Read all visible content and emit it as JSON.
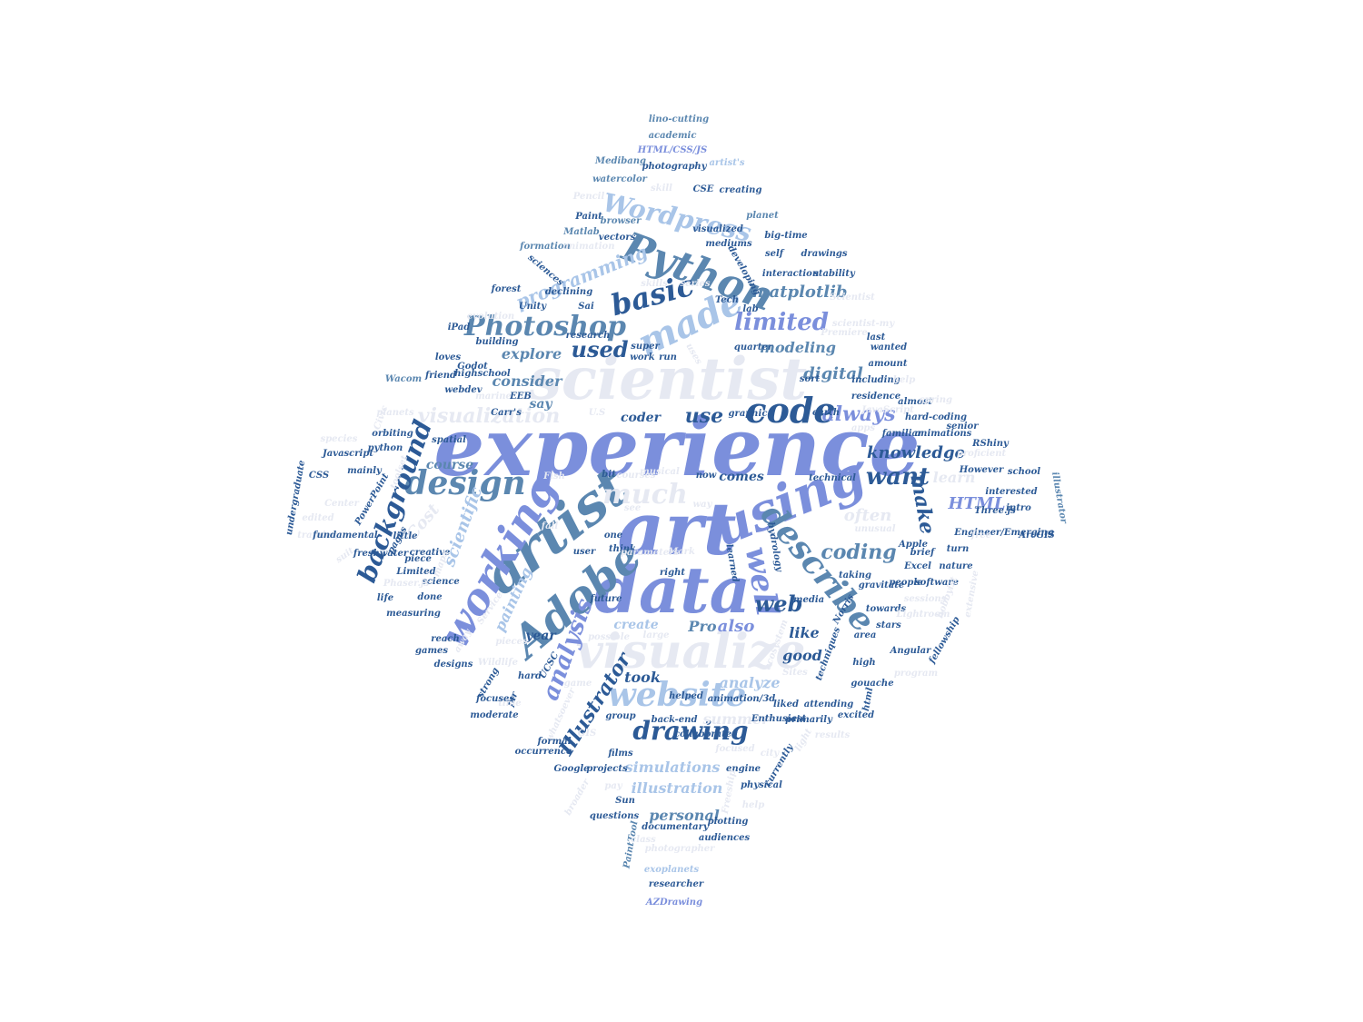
{
  "palette": {
    "navy": "#2c5a96",
    "steel": "#5b87b0",
    "periwinkle": "#7b8fdc",
    "sky": "#a9c5e8",
    "pale": "#e6e9f2"
  },
  "words": [
    {
      "text": "experience",
      "color": "periwinkle"
    },
    {
      "text": "scientist",
      "color": "pale"
    },
    {
      "text": "art",
      "color": "periwinkle"
    },
    {
      "text": "data",
      "color": "periwinkle"
    },
    {
      "text": "visualize",
      "color": "pale"
    },
    {
      "text": "artist",
      "color": "steel"
    },
    {
      "text": "using",
      "color": "periwinkle"
    },
    {
      "text": "working",
      "color": "periwinkle"
    },
    {
      "text": "Adobe",
      "color": "steel"
    },
    {
      "text": "made",
      "color": "sky"
    },
    {
      "text": "Python",
      "color": "steel"
    },
    {
      "text": "code",
      "color": "navy"
    },
    {
      "text": "website",
      "color": "sky"
    },
    {
      "text": "describe",
      "color": "steel"
    },
    {
      "text": "design",
      "color": "steel"
    },
    {
      "text": "much",
      "color": "pale"
    },
    {
      "text": "well",
      "color": "periwinkle"
    },
    {
      "text": "background",
      "color": "navy"
    },
    {
      "text": "Photoshop",
      "color": "steel"
    },
    {
      "text": "basic",
      "color": "navy"
    },
    {
      "text": "Wordpress",
      "color": "sky"
    },
    {
      "text": "drawing",
      "color": "navy"
    },
    {
      "text": "analysis",
      "color": "periwinkle"
    },
    {
      "text": "visualization",
      "color": "pale"
    },
    {
      "text": "limited",
      "color": "periwinkle"
    },
    {
      "text": "always",
      "color": "periwinkle"
    },
    {
      "text": "want",
      "color": "navy"
    },
    {
      "text": "make",
      "color": "navy"
    },
    {
      "text": "coding",
      "color": "steel"
    },
    {
      "text": "used",
      "color": "navy"
    },
    {
      "text": "web",
      "color": "navy"
    },
    {
      "text": "Illustrator",
      "color": "navy"
    },
    {
      "text": "programming",
      "color": "sky"
    },
    {
      "text": "matplotlib",
      "color": "steel"
    },
    {
      "text": "use",
      "color": "navy"
    },
    {
      "text": "scientific",
      "color": "sky"
    },
    {
      "text": "digital",
      "color": "steel"
    },
    {
      "text": "knowledge",
      "color": "navy"
    },
    {
      "text": "HTML",
      "color": "periwinkle"
    },
    {
      "text": "modeling",
      "color": "steel"
    },
    {
      "text": "explore",
      "color": "steel"
    },
    {
      "text": "consider",
      "color": "steel"
    },
    {
      "text": "course",
      "color": "steel"
    },
    {
      "text": "coder",
      "color": "navy"
    },
    {
      "text": "comes",
      "color": "navy"
    },
    {
      "text": "learn",
      "color": "pale"
    },
    {
      "text": "say",
      "color": "steel"
    },
    {
      "text": "Cost",
      "color": "pale"
    },
    {
      "text": "often",
      "color": "pale"
    },
    {
      "text": "painting",
      "color": "sky"
    },
    {
      "text": "also",
      "color": "periwinkle"
    },
    {
      "text": "like",
      "color": "navy"
    },
    {
      "text": "Pro",
      "color": "steel"
    },
    {
      "text": "good",
      "color": "navy"
    },
    {
      "text": "year",
      "color": "navy"
    },
    {
      "text": "took",
      "color": "navy"
    },
    {
      "text": "analyze",
      "color": "sky"
    },
    {
      "text": "create",
      "color": "sky"
    },
    {
      "text": "summer",
      "color": "pale"
    },
    {
      "text": "simulations",
      "color": "sky"
    },
    {
      "text": "illustration",
      "color": "sky"
    },
    {
      "text": "personal",
      "color": "steel"
    },
    {
      "text": "lino-cutting",
      "color": "steel"
    },
    {
      "text": "academic",
      "color": "steel"
    },
    {
      "text": "HTML/CSS/JS",
      "color": "periwinkle"
    },
    {
      "text": "Medibang",
      "color": "steel"
    },
    {
      "text": "photography",
      "color": "navy"
    },
    {
      "text": "artist's",
      "color": "sky"
    },
    {
      "text": "watercolor",
      "color": "steel"
    },
    {
      "text": "skill",
      "color": "pale"
    },
    {
      "text": "CSE",
      "color": "navy"
    },
    {
      "text": "creating",
      "color": "navy"
    },
    {
      "text": "Pencil",
      "color": "pale"
    },
    {
      "text": "Paint",
      "color": "navy"
    },
    {
      "text": "browser",
      "color": "steel"
    },
    {
      "text": "planet",
      "color": "steel"
    },
    {
      "text": "Matlab",
      "color": "steel"
    },
    {
      "text": "vectors",
      "color": "navy"
    },
    {
      "text": "visualized",
      "color": "navy"
    },
    {
      "text": "big-time",
      "color": "navy"
    },
    {
      "text": "formation",
      "color": "steel"
    },
    {
      "text": "animation",
      "color": "pale"
    },
    {
      "text": "mediums",
      "color": "navy"
    },
    {
      "text": "self",
      "color": "navy"
    },
    {
      "text": "drawings",
      "color": "navy"
    },
    {
      "text": "interaction",
      "color": "navy"
    },
    {
      "text": "stability",
      "color": "navy"
    },
    {
      "text": "sciences",
      "color": "navy"
    },
    {
      "text": "developing",
      "color": "navy"
    },
    {
      "text": "forest",
      "color": "navy"
    },
    {
      "text": "declining",
      "color": "navy"
    },
    {
      "text": "skills",
      "color": "pale"
    },
    {
      "text": "series",
      "color": "pale"
    },
    {
      "text": "Tech",
      "color": "navy"
    },
    {
      "text": "Scientist",
      "color": "pale"
    },
    {
      "text": "Unity",
      "color": "navy"
    },
    {
      "text": "Sai",
      "color": "navy"
    },
    {
      "text": "lab",
      "color": "navy"
    },
    {
      "text": "evolution",
      "color": "pale"
    },
    {
      "text": "scientist-my",
      "color": "pale"
    },
    {
      "text": "iPad",
      "color": "navy"
    },
    {
      "text": "research",
      "color": "navy"
    },
    {
      "text": "Premiere",
      "color": "pale"
    },
    {
      "text": "last",
      "color": "navy"
    },
    {
      "text": "building",
      "color": "navy"
    },
    {
      "text": "super",
      "color": "navy"
    },
    {
      "text": "quarter",
      "color": "navy"
    },
    {
      "text": "wanted",
      "color": "navy"
    },
    {
      "text": "loves",
      "color": "navy"
    },
    {
      "text": "work",
      "color": "navy"
    },
    {
      "text": "run",
      "color": "navy"
    },
    {
      "text": "uses",
      "color": "pale"
    },
    {
      "text": "Godot",
      "color": "navy"
    },
    {
      "text": "amount",
      "color": "navy"
    },
    {
      "text": "Wacom",
      "color": "steel"
    },
    {
      "text": "friend",
      "color": "navy"
    },
    {
      "text": "highschool",
      "color": "navy"
    },
    {
      "text": "sort",
      "color": "navy"
    },
    {
      "text": "including",
      "color": "navy"
    },
    {
      "text": "help",
      "color": "pale"
    },
    {
      "text": "webdev",
      "color": "navy"
    },
    {
      "text": "marine",
      "color": "pale"
    },
    {
      "text": "EEB",
      "color": "navy"
    },
    {
      "text": "residence",
      "color": "navy"
    },
    {
      "text": "JavaScript",
      "color": "pale"
    },
    {
      "text": "earth",
      "color": "navy"
    },
    {
      "text": "almost",
      "color": "navy"
    },
    {
      "text": "spring",
      "color": "pale"
    },
    {
      "text": "Carr's",
      "color": "navy"
    },
    {
      "text": "planets",
      "color": "pale"
    },
    {
      "text": "U.S",
      "color": "pale"
    },
    {
      "text": "graphic",
      "color": "navy"
    },
    {
      "text": "apps",
      "color": "pale"
    },
    {
      "text": "hard-coding",
      "color": "navy"
    },
    {
      "text": "senior",
      "color": "navy"
    },
    {
      "text": "Civic",
      "color": "pale"
    },
    {
      "text": "orbiting",
      "color": "navy"
    },
    {
      "text": "spatial",
      "color": "navy"
    },
    {
      "text": "familiar",
      "color": "navy"
    },
    {
      "text": "animations",
      "color": "navy"
    },
    {
      "text": "species",
      "color": "pale"
    },
    {
      "text": "RShiny",
      "color": "navy"
    },
    {
      "text": "python",
      "color": "navy"
    },
    {
      "text": "proficient",
      "color": "pale"
    },
    {
      "text": "Javascript",
      "color": "navy"
    },
    {
      "text": "However",
      "color": "navy"
    },
    {
      "text": "school",
      "color": "navy"
    },
    {
      "text": "mainly",
      "color": "navy"
    },
    {
      "text": "toolset",
      "color": "pale"
    },
    {
      "text": "courses",
      "color": "pale"
    },
    {
      "text": "bit",
      "color": "navy"
    },
    {
      "text": "musical",
      "color": "pale"
    },
    {
      "text": "now",
      "color": "navy"
    },
    {
      "text": "technical",
      "color": "navy"
    },
    {
      "text": "CSS",
      "color": "navy"
    },
    {
      "text": "undergraduate",
      "color": "navy"
    },
    {
      "text": "PowerPoint",
      "color": "navy"
    },
    {
      "text": "Center",
      "color": "pale"
    },
    {
      "text": "Fish",
      "color": "pale"
    },
    {
      "text": "interested",
      "color": "navy"
    },
    {
      "text": "intro",
      "color": "navy"
    },
    {
      "text": "illustrator",
      "color": "steel"
    },
    {
      "text": "Three.js",
      "color": "navy"
    },
    {
      "text": "edited",
      "color": "pale"
    },
    {
      "text": "training",
      "color": "pale"
    },
    {
      "text": "fundamental",
      "color": "navy"
    },
    {
      "text": "fall",
      "color": "pale"
    },
    {
      "text": "one",
      "color": "navy"
    },
    {
      "text": "see",
      "color": "pale"
    },
    {
      "text": "way",
      "color": "pale"
    },
    {
      "text": "unusual",
      "color": "pale"
    },
    {
      "text": "Apple",
      "color": "navy"
    },
    {
      "text": "ArcGIS",
      "color": "navy"
    },
    {
      "text": "Engineer/Emerging",
      "color": "navy"
    },
    {
      "text": "free",
      "color": "pale"
    },
    {
      "text": "turn",
      "color": "navy"
    },
    {
      "text": "little",
      "color": "navy"
    },
    {
      "text": "creative",
      "color": "navy"
    },
    {
      "text": "freshwater",
      "color": "navy"
    },
    {
      "text": "pages",
      "color": "navy"
    },
    {
      "text": "user",
      "color": "navy"
    },
    {
      "text": "piece",
      "color": "navy"
    },
    {
      "text": "Mark",
      "color": "pale"
    },
    {
      "text": "think",
      "color": "navy"
    },
    {
      "text": "parameters",
      "color": "pale"
    },
    {
      "text": "brief",
      "color": "navy"
    },
    {
      "text": "suit",
      "color": "pale"
    },
    {
      "text": "Limited",
      "color": "navy"
    },
    {
      "text": "maps",
      "color": "pale"
    },
    {
      "text": "science",
      "color": "navy"
    },
    {
      "text": "hydrology",
      "color": "navy"
    },
    {
      "text": "learned",
      "color": "navy"
    },
    {
      "text": "taking",
      "color": "navy"
    },
    {
      "text": "Excel",
      "color": "navy"
    },
    {
      "text": "nature",
      "color": "navy"
    },
    {
      "text": "right",
      "color": "navy"
    },
    {
      "text": "people",
      "color": "navy"
    },
    {
      "text": "software",
      "color": "navy"
    },
    {
      "text": "Phaser.js",
      "color": "pale"
    },
    {
      "text": "life",
      "color": "navy"
    },
    {
      "text": "done",
      "color": "navy"
    },
    {
      "text": "future",
      "color": "navy"
    },
    {
      "text": "media",
      "color": "navy"
    },
    {
      "text": "sessions",
      "color": "pale"
    },
    {
      "text": "hobbyist",
      "color": "pale"
    },
    {
      "text": "gravitate",
      "color": "navy"
    },
    {
      "text": "extensive",
      "color": "pale"
    },
    {
      "text": "Service",
      "color": "pale"
    },
    {
      "text": "measuring",
      "color": "navy"
    },
    {
      "text": "towards",
      "color": "navy"
    },
    {
      "text": "Lightroom",
      "color": "pale"
    },
    {
      "text": "Norris",
      "color": "navy"
    },
    {
      "text": "stars",
      "color": "navy"
    },
    {
      "text": "games",
      "color": "navy"
    },
    {
      "text": "reach",
      "color": "navy"
    },
    {
      "text": "possible",
      "color": "pale"
    },
    {
      "text": "ecosystem",
      "color": "pale"
    },
    {
      "text": "fellowship",
      "color": "navy"
    },
    {
      "text": "area",
      "color": "navy"
    },
    {
      "text": "large",
      "color": "pale"
    },
    {
      "text": "pieces",
      "color": "pale"
    },
    {
      "text": "away",
      "color": "pale"
    },
    {
      "text": "Angular",
      "color": "navy"
    },
    {
      "text": "high",
      "color": "navy"
    },
    {
      "text": "techniques",
      "color": "navy"
    },
    {
      "text": "designs",
      "color": "navy"
    },
    {
      "text": "Wildlife",
      "color": "pale"
    },
    {
      "text": "UCSC",
      "color": "navy"
    },
    {
      "text": "gouache",
      "color": "navy"
    },
    {
      "text": "Sites",
      "color": "pale"
    },
    {
      "text": "program",
      "color": "pale"
    },
    {
      "text": "hard",
      "color": "navy"
    },
    {
      "text": "game",
      "color": "pale"
    },
    {
      "text": "helped",
      "color": "navy"
    },
    {
      "text": "html",
      "color": "navy"
    },
    {
      "text": "strong",
      "color": "navy"
    },
    {
      "text": "far",
      "color": "navy"
    },
    {
      "text": "animation/3d",
      "color": "navy"
    },
    {
      "text": "time",
      "color": "pale"
    },
    {
      "text": "focuses",
      "color": "navy"
    },
    {
      "text": "liked",
      "color": "navy"
    },
    {
      "text": "attending",
      "color": "navy"
    },
    {
      "text": "moderate",
      "color": "navy"
    },
    {
      "text": "whatsoever",
      "color": "pale"
    },
    {
      "text": "Enthusiast",
      "color": "navy"
    },
    {
      "text": "group",
      "color": "navy"
    },
    {
      "text": "back-end",
      "color": "navy"
    },
    {
      "text": "primarily",
      "color": "navy"
    },
    {
      "text": "excited",
      "color": "navy"
    },
    {
      "text": "GIS",
      "color": "pale"
    },
    {
      "text": "collaborated",
      "color": "navy"
    },
    {
      "text": "light",
      "color": "pale"
    },
    {
      "text": "results",
      "color": "pale"
    },
    {
      "text": "formal",
      "color": "navy"
    },
    {
      "text": "occurrence",
      "color": "navy"
    },
    {
      "text": "films",
      "color": "navy"
    },
    {
      "text": "focused",
      "color": "pale"
    },
    {
      "text": "currently",
      "color": "navy"
    },
    {
      "text": "Google",
      "color": "navy"
    },
    {
      "text": "projects",
      "color": "navy"
    },
    {
      "text": "city",
      "color": "pale"
    },
    {
      "text": "engine",
      "color": "navy"
    },
    {
      "text": "physical",
      "color": "navy"
    },
    {
      "text": "pay",
      "color": "pale"
    },
    {
      "text": "Freeship",
      "color": "pale"
    },
    {
      "text": "Sun",
      "color": "navy"
    },
    {
      "text": "help",
      "color": "pale"
    },
    {
      "text": "broader",
      "color": "pale"
    },
    {
      "text": "questions",
      "color": "navy"
    },
    {
      "text": "plotting",
      "color": "navy"
    },
    {
      "text": "documentary",
      "color": "navy"
    },
    {
      "text": "PaintTool",
      "color": "steel"
    },
    {
      "text": "class",
      "color": "pale"
    },
    {
      "text": "audiences",
      "color": "navy"
    },
    {
      "text": "photographer",
      "color": "pale"
    },
    {
      "text": "exoplanets",
      "color": "sky"
    },
    {
      "text": "researcher",
      "color": "navy"
    },
    {
      "text": "AZDrawing",
      "color": "periwinkle"
    }
  ]
}
